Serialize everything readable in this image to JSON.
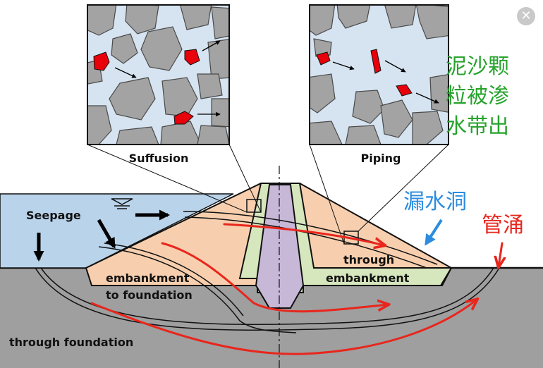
{
  "labels": {
    "suffusion": "Suffusion",
    "piping": "Piping",
    "seepage": "Seepage",
    "embankment_to_foundation_1": "embankment",
    "embankment_to_foundation_2": "to foundation",
    "through_embankment_1": "through",
    "through_embankment_2": "embankment",
    "through_foundation": "through foundation"
  },
  "annotations": {
    "particles_line1": "泥沙颗",
    "particles_line2": "粒被渗",
    "particles_line3": "水带出",
    "leak_hole": "漏水洞",
    "boiling": "管涌"
  },
  "colors": {
    "water": "#b9d3ea",
    "embankment": "#f8cfae",
    "filter": "#d6e6bd",
    "core": "#c8b8d8",
    "foundation": "#9f9f9f",
    "inset_bg": "#d6e3f0",
    "stone": "#a3a3a3",
    "particle": "#e8000b",
    "annotation_green": "#27a32d",
    "annotation_blue": "#2b8ce0",
    "annotation_red": "#e8261d"
  },
  "icons": {
    "close": "✕"
  }
}
